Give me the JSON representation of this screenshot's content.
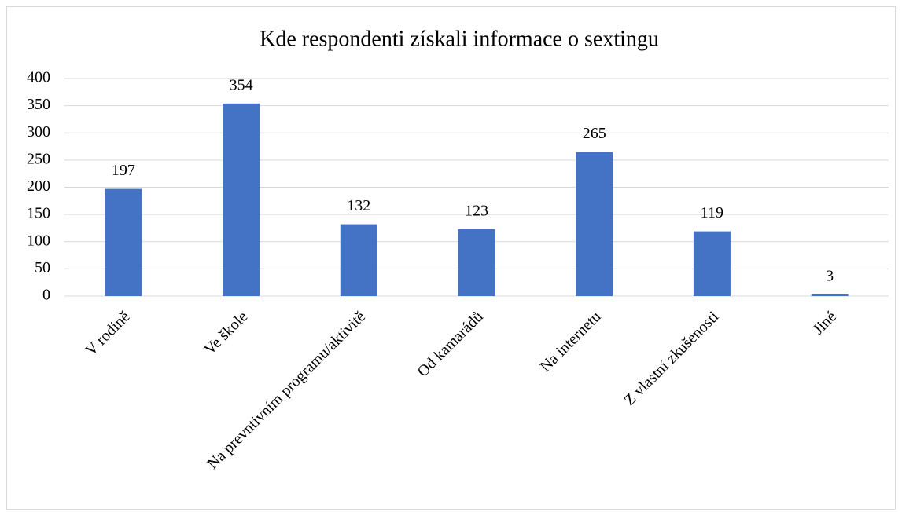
{
  "chart_data": {
    "type": "bar",
    "title": "Kde respondenti získali informace o sextingu",
    "categories": [
      "V rodině",
      "Ve škole",
      "Na prevntivním programu/aktivitě",
      "Od kamarádů",
      "Na internetu",
      "Z vlastní zkušenosti",
      "Jiné"
    ],
    "values": [
      197,
      354,
      132,
      123,
      265,
      119,
      3
    ],
    "color": "#4472c4",
    "ylim": [
      0,
      400
    ],
    "yticks": [
      0,
      50,
      100,
      150,
      200,
      250,
      300,
      350,
      400
    ],
    "grid": true,
    "data_labels": true
  }
}
